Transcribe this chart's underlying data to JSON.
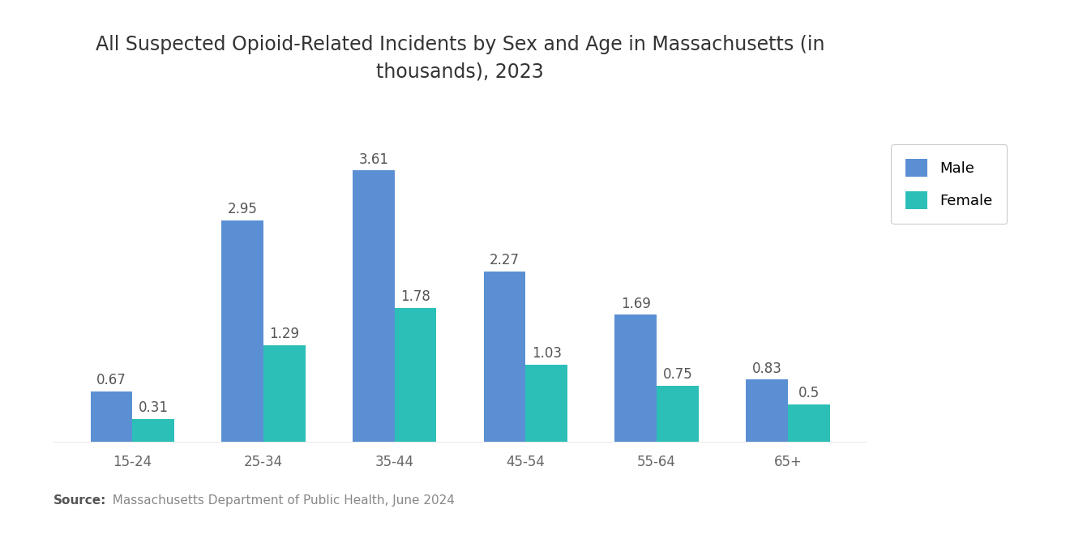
{
  "title": "All Suspected Opioid-Related Incidents by Sex and Age in Massachusetts (in\nthousands), 2023",
  "categories": [
    "15-24",
    "25-34",
    "35-44",
    "45-54",
    "55-64",
    "65+"
  ],
  "male_values": [
    0.67,
    2.95,
    3.61,
    2.27,
    1.69,
    0.83
  ],
  "female_values": [
    0.31,
    1.29,
    1.78,
    1.03,
    0.75,
    0.5
  ],
  "male_color": "#5B8FD4",
  "female_color": "#2BBFB8",
  "background_color": "#FFFFFF",
  "title_fontsize": 17,
  "label_fontsize": 12,
  "tick_fontsize": 12,
  "legend_labels": [
    "Male",
    "Female"
  ],
  "source_bold": "Source:",
  "source_rest": "  Massachusetts Department of Public Health, June 2024",
  "bar_width": 0.32,
  "ylim": [
    0,
    4.3
  ]
}
